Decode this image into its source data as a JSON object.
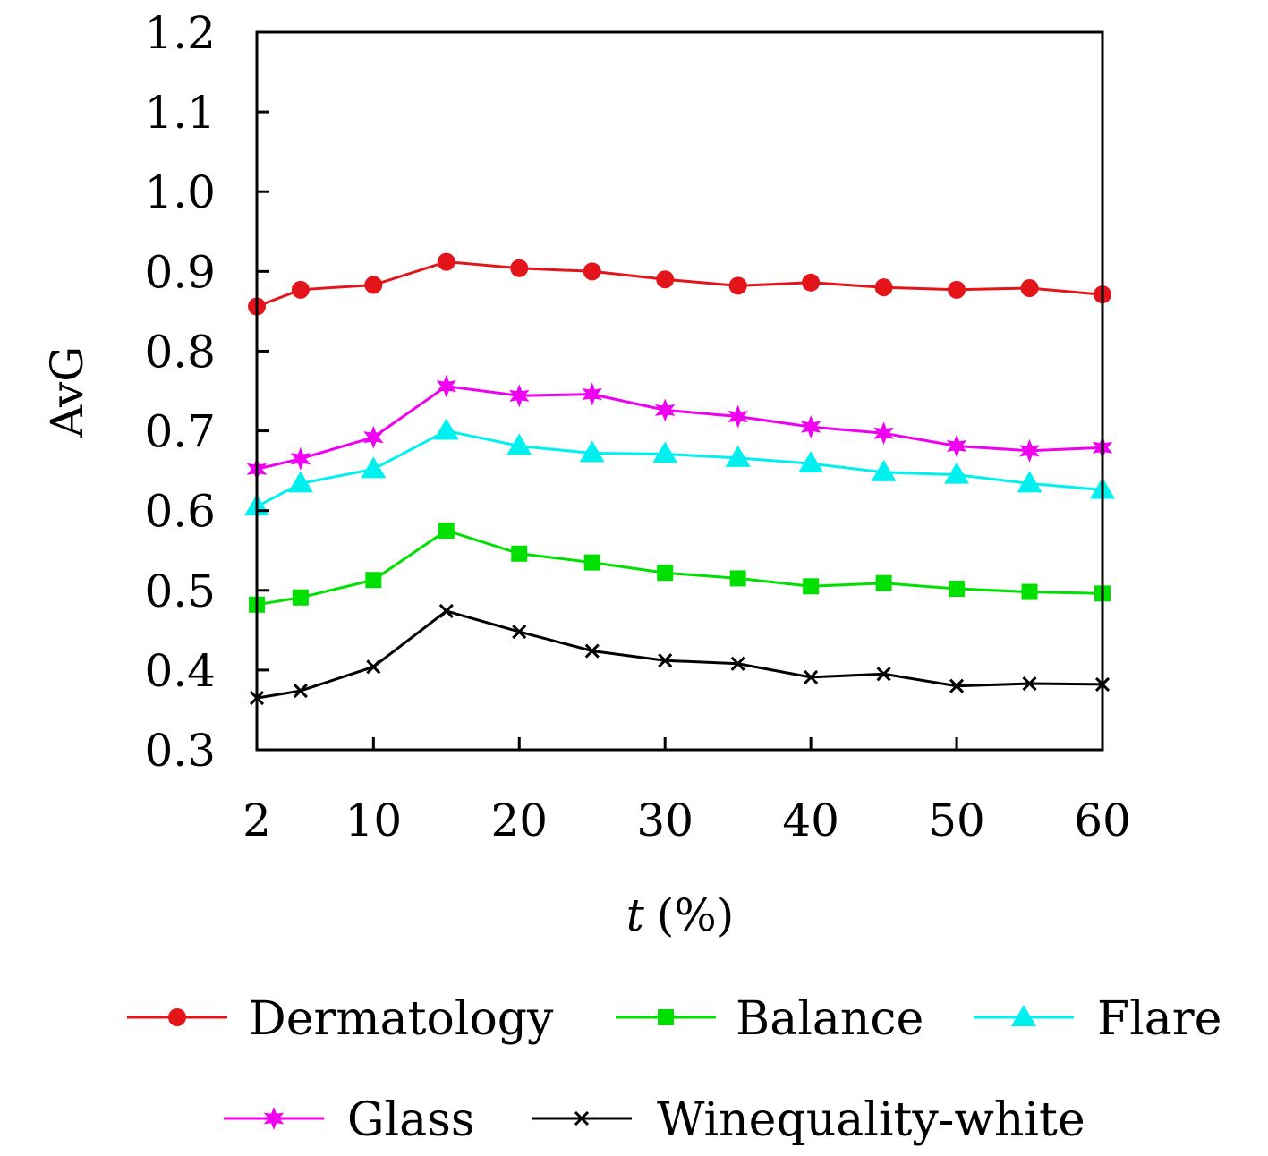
{
  "chart_data": {
    "type": "line",
    "xlabel_var": "t",
    "xlabel_unit": "(%)",
    "ylabel": "AvG",
    "xlim": [
      2,
      60
    ],
    "ylim": [
      0.3,
      1.2
    ],
    "x_ticks": [
      2,
      10,
      20,
      30,
      40,
      50,
      60
    ],
    "y_ticks": [
      "0.3",
      "0.4",
      "0.5",
      "0.6",
      "0.7",
      "0.8",
      "0.9",
      "1.0",
      "1.1",
      "1.2"
    ],
    "x": [
      2,
      5,
      10,
      15,
      20,
      25,
      30,
      35,
      40,
      45,
      50,
      55,
      60
    ],
    "grid": false,
    "legend_position": "bottom",
    "series": [
      {
        "name": "Dermatology",
        "color": "#e4141b",
        "marker": "circle",
        "values": [
          0.856,
          0.877,
          0.883,
          0.912,
          0.904,
          0.9,
          0.89,
          0.882,
          0.886,
          0.88,
          0.877,
          0.879,
          0.871
        ]
      },
      {
        "name": "Balance",
        "color": "#00e000",
        "marker": "square",
        "values": [
          0.482,
          0.491,
          0.513,
          0.575,
          0.546,
          0.535,
          0.522,
          0.515,
          0.505,
          0.509,
          0.502,
          0.498,
          0.496
        ]
      },
      {
        "name": "Flare",
        "color": "#00f0f0",
        "marker": "triangle",
        "values": [
          0.605,
          0.634,
          0.652,
          0.7,
          0.681,
          0.672,
          0.671,
          0.666,
          0.659,
          0.648,
          0.645,
          0.634,
          0.626
        ]
      },
      {
        "name": "Glass",
        "color": "#f000f0",
        "marker": "star",
        "values": [
          0.652,
          0.665,
          0.692,
          0.756,
          0.744,
          0.746,
          0.726,
          0.718,
          0.705,
          0.697,
          0.681,
          0.675,
          0.679
        ]
      },
      {
        "name": "Winequality-white",
        "color": "#000000",
        "marker": "cross",
        "values": [
          0.365,
          0.374,
          0.404,
          0.474,
          0.448,
          0.424,
          0.412,
          0.408,
          0.391,
          0.395,
          0.38,
          0.383,
          0.382
        ]
      }
    ]
  }
}
